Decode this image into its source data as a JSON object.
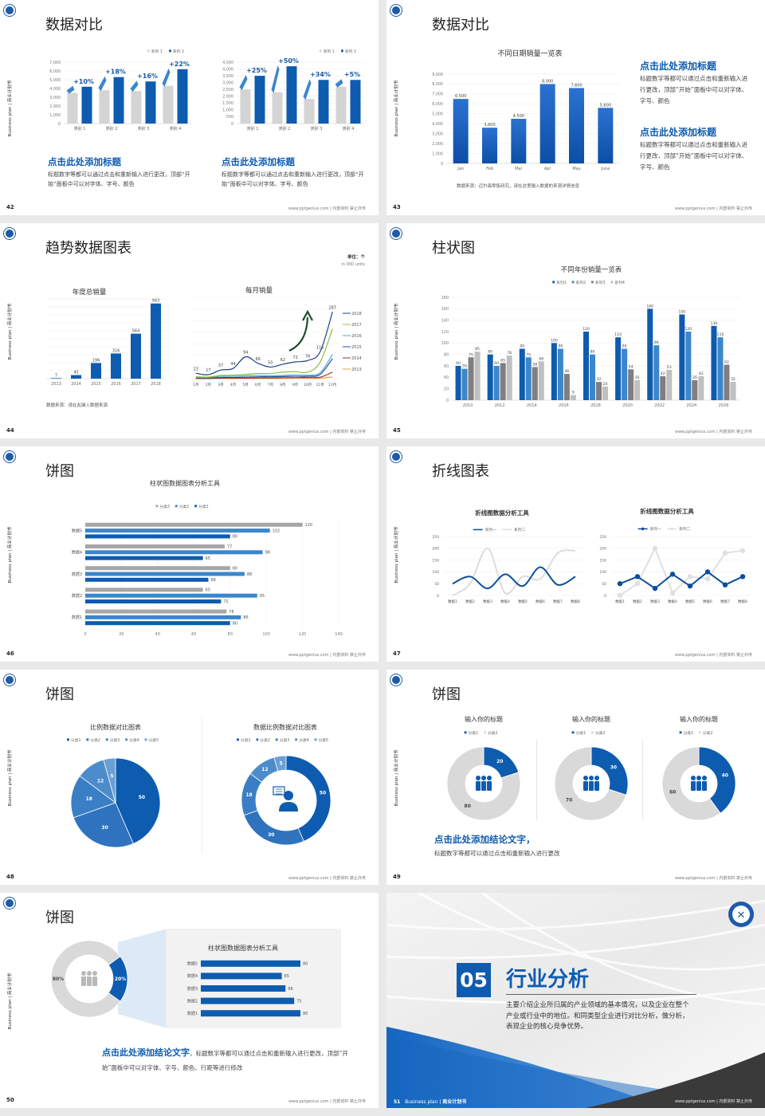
{
  "common": {
    "side_label": "Business plan | 商业计划书",
    "footer": "www.pptgenius.com | 内部资料 禁止外传"
  },
  "colors": {
    "brand_blue": "#0d5cb0",
    "light_blue": "#3b86cc",
    "gray": "#d4d4d4",
    "dark_gray": "#3a3a3a"
  },
  "slides": [
    {
      "page": "42",
      "title": "数据对比",
      "left_heading": "点击此处添加标题",
      "left_body": "标题数字等都可以通过点击和重新输入进行更改，顶部“开始”面板中可以对字体、字号、颜色",
      "right_heading": "点击此处添加标题",
      "right_body": "标题数字等都可以通过点击和重新输入进行更改，顶部“开始”面板中可以对字体、字号、颜色"
    },
    {
      "page": "43",
      "title": "数据对比",
      "heading1": "点击此处添加标题",
      "body1": "标题数字等都可以通过点击和重新输入进行更改，顶部“开始”面板中可以对字体、字号、颜色",
      "heading2": "点击此处添加标题",
      "body2": "标题数字等都可以通过点击和重新输入进行更改，顶部“开始”面板中可以对字体、字号、颜色",
      "source": "数据来源：迈尔森零售研究，请在这里输入数据的来源详情信息"
    },
    {
      "page": "44",
      "title": "趋势数据图表",
      "unit": "单位：个",
      "unit_en": "in 000 units",
      "source": "数据来源：请在此键入数据来源"
    },
    {
      "page": "45",
      "title": "柱状图"
    },
    {
      "page": "46",
      "title": "饼图"
    },
    {
      "page": "47",
      "title": "折线图表"
    },
    {
      "page": "48",
      "title": "饼图"
    },
    {
      "page": "49",
      "title": "饼图",
      "heading": "点击此处添加结论文字，",
      "body": "标题数字等都可以通过点击和重新输入进行更改"
    },
    {
      "page": "50",
      "title": "饼图",
      "heading": "点击此处添加结论文字",
      "body": "，标题数字等都可以通过点击和重新输入进行更改，顶部“开始”面板中可以对字体、字号、颜色、行距等进行修改"
    },
    {
      "page": "51",
      "section_number": "05",
      "section_title": "行业分析",
      "section_body": "主要介绍企业所归属的产业领域的基本情况，以及企业在整个产业或行业中的地位。和同类型企业进行对比分析，做分析，表现企业的核心竞争优势。",
      "footer_prefix": "Business plan | ",
      "footer_bold": "商业计划书"
    }
  ],
  "chart_data": [
    {
      "id": "s42a",
      "type": "bar",
      "categories": [
        "类别 1",
        "类别 2",
        "类别 3",
        "类别 4"
      ],
      "series": [
        {
          "name": "系列 1",
          "color": "#d4d4d4",
          "values": [
            3500,
            3800,
            3700,
            4300
          ]
        },
        {
          "name": "系列 2",
          "color": "#0d5cb0",
          "values": [
            4200,
            5300,
            4800,
            6200
          ]
        }
      ],
      "ylim": [
        0,
        7000
      ],
      "ystep": 1000,
      "yticks": true,
      "thousands": true,
      "grid": true,
      "annotations": [
        "+10%",
        "+18%",
        "+16%",
        "+22%"
      ],
      "legend": "top-right"
    },
    {
      "id": "s42b",
      "type": "bar",
      "categories": [
        "类别 1",
        "类别 2",
        "类别 3",
        "类别 4"
      ],
      "series": [
        {
          "name": "系列 1",
          "color": "#d4d4d4",
          "values": [
            2500,
            2300,
            1800,
            2700
          ]
        },
        {
          "name": "系列 2",
          "color": "#0d5cb0",
          "values": [
            3500,
            4200,
            3200,
            3200
          ]
        }
      ],
      "ylim": [
        0,
        4500
      ],
      "ystep": 500,
      "yticks": true,
      "thousands": true,
      "grid": true,
      "annotations": [
        "+25%",
        "+50%",
        "+34%",
        "+5%"
      ],
      "legend": "top-right"
    },
    {
      "id": "s43",
      "type": "bar",
      "title": "不同日期销量一览表",
      "categories": [
        "Jan",
        "Feb",
        "Mar",
        "Apr",
        "May",
        "June"
      ],
      "series": [
        {
          "color": "#1a5fbf",
          "values": [
            6500,
            3600,
            4500,
            8000,
            7600,
            5600
          ]
        }
      ],
      "ylim": [
        0,
        9000
      ],
      "ystep": 1000,
      "yticks": true,
      "thousands": true,
      "grid": true,
      "data_labels": true
    },
    {
      "id": "s44a",
      "type": "bar",
      "title": "年度总销量",
      "categories": [
        "2013",
        "2014",
        "2015",
        "2016",
        "2017",
        "2018"
      ],
      "series": [
        {
          "color": "#0d5cb0",
          "values": [
            7,
            45,
            196,
            316,
            564,
            943
          ]
        }
      ],
      "ylim": [
        0,
        1000
      ],
      "ystep": 100,
      "yticks": false,
      "grid": true,
      "data_labels": true
    },
    {
      "id": "s44b",
      "type": "line",
      "title": "每月销量",
      "categories": [
        "1月",
        "2月",
        "3月",
        "4月",
        "5月",
        "6月",
        "7月",
        "8月",
        "9月",
        "10月",
        "11月",
        "12月"
      ],
      "ylim": [
        0,
        350
      ],
      "ystep": 50,
      "yticks": false,
      "grid": true,
      "legend": "right",
      "series": [
        {
          "name": "2018",
          "color": "#1f3f85",
          "values": [
            23,
            17,
            37,
            44,
            94,
            66,
            50,
            62,
            72,
            78,
            115,
            287
          ],
          "labels": true
        },
        {
          "name": "2017",
          "color": "#8cbf3f",
          "values": [
            8,
            7,
            14,
            15,
            18,
            22,
            22,
            28,
            30,
            28,
            70,
            214
          ]
        },
        {
          "name": "2016",
          "color": "#3fb0d0",
          "values": [
            5,
            5,
            10,
            10,
            12,
            14,
            12,
            14,
            16,
            15,
            25,
            104
          ]
        },
        {
          "name": "2015",
          "color": "#2b4c9c",
          "values": [
            3,
            3,
            5,
            5,
            6,
            8,
            8,
            9,
            10,
            10,
            18,
            86
          ]
        },
        {
          "name": "2014",
          "color": "#a8321e",
          "values": [
            1,
            1,
            2,
            2,
            2,
            3,
            3,
            4,
            4,
            5,
            6,
            28
          ]
        },
        {
          "name": "2013",
          "color": "#f0a030",
          "values": [
            0,
            0,
            1,
            1,
            1,
            1,
            1,
            1,
            2,
            2,
            2,
            7
          ]
        }
      ]
    },
    {
      "id": "s45",
      "type": "bar",
      "title": "不同年份销量一览表",
      "categories": [
        "2010",
        "2012",
        "2014",
        "2016",
        "2018",
        "2020",
        "2022",
        "2024",
        "2026"
      ],
      "ylim": [
        0,
        180
      ],
      "ystep": 20,
      "yticks": true,
      "grid": true,
      "data_labels": true,
      "legend": "top",
      "series": [
        {
          "name": "系列1",
          "color": "#0d5cb0",
          "values": [
            60,
            80,
            90,
            100,
            120,
            110,
            160,
            150,
            130
          ]
        },
        {
          "name": "系列2",
          "color": "#3b86cc",
          "values": [
            55,
            60,
            75,
            90,
            80,
            90,
            96,
            120,
            110
          ]
        },
        {
          "name": "系列3",
          "color": "#7f7f7f",
          "values": [
            75,
            65,
            58,
            46,
            32,
            54,
            42,
            35,
            62
          ]
        },
        {
          "name": "系列4",
          "color": "#c0c0c0",
          "values": [
            85,
            78,
            68,
            9,
            24,
            35,
            53,
            42,
            32
          ]
        }
      ]
    },
    {
      "id": "s46",
      "type": "hbar",
      "title": "柱状图数据图表分析工具",
      "categories": [
        "数据5",
        "数据4",
        "数据3",
        "数据2",
        "数据1"
      ],
      "xlim": [
        0,
        140
      ],
      "xstep": 20,
      "xticks": true,
      "grid": true,
      "data_labels": true,
      "legend": "top",
      "series": [
        {
          "name": "分类3",
          "color": "#a6a6a6",
          "values": [
            120,
            77,
            80,
            65,
            78
          ]
        },
        {
          "name": "分类2",
          "color": "#3b86cc",
          "values": [
            102,
            98,
            88,
            95,
            86
          ]
        },
        {
          "name": "分类1",
          "color": "#0d5cb0",
          "values": [
            80,
            65,
            68,
            75,
            80
          ]
        }
      ]
    },
    {
      "id": "s47a",
      "type": "line",
      "title": "折线图数据分析工具",
      "categories": [
        "数据1",
        "数据2",
        "数据3",
        "数据4",
        "数据5",
        "数据6",
        "数据7",
        "数据8"
      ],
      "ylim": [
        0,
        250
      ],
      "ystep": 50,
      "yticks": true,
      "grid": true,
      "markers": false,
      "legend": "top",
      "series": [
        {
          "name": "系列一",
          "color": "#0d4f9c",
          "values": [
            50,
            80,
            30,
            90,
            40,
            120,
            45,
            80
          ]
        },
        {
          "name": "系列二",
          "color": "#dcdcdc",
          "values": [
            0,
            50,
            200,
            10,
            80,
            70,
            180,
            190
          ]
        }
      ]
    },
    {
      "id": "s47b",
      "type": "line",
      "title": "折线图数据分析工具",
      "categories": [
        "数据1",
        "数据2",
        "数据3",
        "数据4",
        "数据5",
        "数据6",
        "数据7",
        "数据8"
      ],
      "ylim": [
        0,
        250
      ],
      "ystep": 50,
      "yticks": true,
      "grid": true,
      "markers": true,
      "legend": "top",
      "series": [
        {
          "name": "系列一",
          "color": "#0d4f9c",
          "values": [
            50,
            80,
            30,
            90,
            40,
            100,
            45,
            80
          ]
        },
        {
          "name": "系列二",
          "color": "#e0e0e0",
          "values": [
            0,
            50,
            200,
            10,
            80,
            70,
            180,
            190
          ]
        }
      ]
    },
    {
      "id": "s48a",
      "type": "pie",
      "title": "比例数据对比图表",
      "categories": [
        "分类1",
        "分类2",
        "分类3",
        "分类4",
        "分类5"
      ],
      "values": [
        50,
        30,
        18,
        12,
        5
      ],
      "colors": [
        "#0d5cb0",
        "#2f73bf",
        "#3a7fc5",
        "#4d8cca",
        "#6a9fd4"
      ],
      "legend": "top"
    },
    {
      "id": "s48b",
      "type": "donut",
      "title": "数据比例数据对比图表",
      "categories": [
        "分类1",
        "分类2",
        "分类3",
        "分类4",
        "分类5"
      ],
      "values": [
        50,
        30,
        18,
        12,
        5
      ],
      "colors": [
        "#0d5cb0",
        "#2f73bf",
        "#3a7fc5",
        "#4d8cca",
        "#6a9fd4"
      ],
      "legend": "top",
      "center_icon": "person-chat-icon"
    },
    {
      "id": "s49a",
      "type": "donut",
      "title": "输入你的标题",
      "categories": [
        "分类1",
        "分类2"
      ],
      "values": [
        20,
        80
      ],
      "colors": [
        "#0d5cb0",
        "#d9d9d9"
      ],
      "legend": "top",
      "center_icon": "people-icon"
    },
    {
      "id": "s49b",
      "type": "donut",
      "title": "输入你的标题",
      "categories": [
        "分类1",
        "分类2"
      ],
      "values": [
        30,
        70
      ],
      "colors": [
        "#0d5cb0",
        "#d9d9d9"
      ],
      "legend": "top",
      "center_icon": "people-icon"
    },
    {
      "id": "s49c",
      "type": "donut",
      "title": "输入你的标题",
      "categories": [
        "分类1",
        "分类2"
      ],
      "values": [
        40,
        60
      ],
      "colors": [
        "#0d5cb0",
        "#d9d9d9"
      ],
      "legend": "top",
      "center_icon": "people-icon"
    },
    {
      "id": "s50a",
      "type": "donut",
      "values": [
        20,
        80
      ],
      "colors": [
        "#0d5cb0",
        "#d9d9d9"
      ],
      "label_suffix": "%",
      "center_icon": "team-icon"
    },
    {
      "id": "s50b",
      "type": "hbar",
      "title": "柱状图数据图表分析工具",
      "categories": [
        "数据5",
        "数据4",
        "数据3",
        "数据2",
        "数据1"
      ],
      "xlim": [
        0,
        80
      ],
      "xticks": false,
      "grid": false,
      "data_labels": true,
      "series": [
        {
          "color": "#0d5cb0",
          "values": [
            80,
            65,
            68,
            75,
            80
          ]
        }
      ]
    }
  ]
}
